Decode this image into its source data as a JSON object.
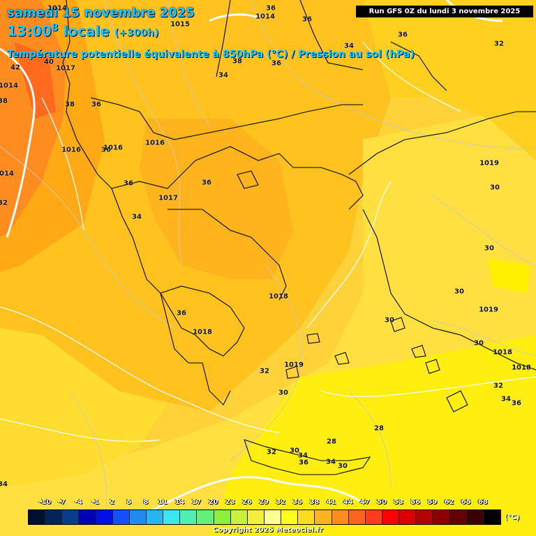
{
  "header": {
    "date_line": "samedi 15 novembre 2025",
    "time_line": "13:00",
    "time_sup": "8",
    "time_suffix": " locale",
    "forecast_hour": "(+300h)",
    "parameter_line": "Température potentielle équivalente à 850hPa (°C) / Pression au sol (hPa)",
    "run_info": "Run GFS 0Z du lundi 3 novembre 2025"
  },
  "legend": {
    "ticks": [
      "-10",
      "-7",
      "-4",
      "-1",
      "2",
      "5",
      "8",
      "11",
      "14",
      "17",
      "20",
      "23",
      "26",
      "29",
      "32",
      "35",
      "38",
      "41",
      "44",
      "47",
      "50",
      "53",
      "56",
      "59",
      "62",
      "65",
      "68"
    ],
    "unit": "(°C)",
    "colors": [
      "#00102e",
      "#00235a",
      "#0a3c8c",
      "#0000b4",
      "#0010e6",
      "#1450ff",
      "#1e8cf0",
      "#28b4f0",
      "#3ce6f0",
      "#50f0b4",
      "#64f078",
      "#8cf03c",
      "#c8f03c",
      "#f0f03c",
      "#ffff96",
      "#ffff1e",
      "#ffdc1e",
      "#ffb41e",
      "#ff8c1e",
      "#ff641e",
      "#ff3c1e",
      "#ff0000",
      "#dc0000",
      "#b40000",
      "#8c0000",
      "#640000",
      "#3c0000",
      "#000000"
    ]
  },
  "copyright": "Copyright 2025 Meteociel.fr",
  "map_labels": {
    "temperature": [
      {
        "text": "36"
      },
      {
        "text": "36"
      },
      {
        "text": "36"
      },
      {
        "text": "32"
      },
      {
        "text": "42"
      },
      {
        "text": "40"
      },
      {
        "text": "38"
      },
      {
        "text": "38"
      },
      {
        "text": "36"
      },
      {
        "text": "36"
      },
      {
        "text": "34"
      },
      {
        "text": "38"
      },
      {
        "text": "36"
      },
      {
        "text": "36"
      },
      {
        "text": "34"
      },
      {
        "text": "36"
      },
      {
        "text": "36"
      },
      {
        "text": "34"
      },
      {
        "text": "30"
      },
      {
        "text": "30"
      },
      {
        "text": "30"
      },
      {
        "text": "30"
      },
      {
        "text": "30"
      },
      {
        "text": "32"
      },
      {
        "text": "30"
      },
      {
        "text": "32"
      },
      {
        "text": "34"
      },
      {
        "text": "36"
      },
      {
        "text": "28"
      },
      {
        "text": "28"
      },
      {
        "text": "30"
      },
      {
        "text": "32"
      },
      {
        "text": "34"
      },
      {
        "text": "36"
      },
      {
        "text": "34"
      },
      {
        "text": "30"
      },
      {
        "text": "34"
      },
      {
        "text": "32"
      }
    ],
    "pressure": [
      {
        "text": "1014"
      },
      {
        "text": "1015"
      },
      {
        "text": "1014"
      },
      {
        "text": "1017"
      },
      {
        "text": "1014"
      },
      {
        "text": "1016"
      },
      {
        "text": "1016"
      },
      {
        "text": "1016"
      },
      {
        "text": "1017"
      },
      {
        "text": "1014"
      },
      {
        "text": "1019"
      },
      {
        "text": "1018"
      },
      {
        "text": "1018"
      },
      {
        "text": "1019"
      },
      {
        "text": "1019"
      },
      {
        "text": "1018"
      },
      {
        "text": "1018"
      }
    ]
  }
}
